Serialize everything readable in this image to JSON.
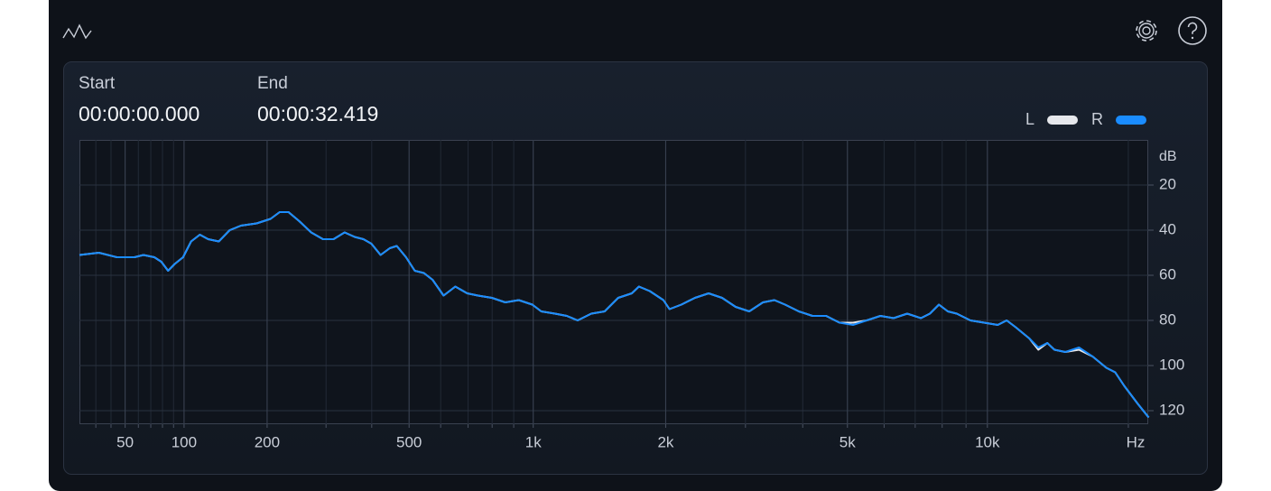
{
  "time": {
    "start_label": "Start",
    "start": "00:00:00.000",
    "end_label": "End",
    "end": "00:00:32.419"
  },
  "chart_data": {
    "type": "line",
    "xscale": "log",
    "grid": true,
    "y_unit": "dB",
    "x_unit": "Hz",
    "xlim": [
      20,
      22050
    ],
    "ylim": [
      126,
      0
    ],
    "xticks": [
      50,
      100,
      200,
      500,
      {
        "value": 1000,
        "label": "1k"
      },
      {
        "value": 2000,
        "label": "2k"
      },
      {
        "value": 5000,
        "label": "5k"
      },
      {
        "value": 10000,
        "label": "10k"
      }
    ],
    "yticks": [
      20,
      40,
      60,
      80,
      100,
      120
    ],
    "x": [
      20,
      32,
      44,
      57,
      64,
      73,
      79,
      85,
      91,
      99,
      107,
      116,
      125,
      137,
      150,
      164,
      185,
      205,
      219,
      233,
      251,
      272,
      294,
      315,
      338,
      360,
      380,
      399,
      422,
      446,
      465,
      491,
      517,
      545,
      573,
      610,
      652,
      697,
      740,
      799,
      860,
      925,
      995,
      1044,
      1123,
      1196,
      1266,
      1360,
      1459,
      1565,
      1680,
      1743,
      1843,
      1977,
      2040,
      2167,
      2323,
      2490,
      2665,
      2855,
      3058,
      3276,
      3471,
      3662,
      3922,
      4199,
      4496,
      4806,
      5141,
      5502,
      5890,
      6289,
      6730,
      7201,
      7527,
      7871,
      8225,
      8598,
      9198,
      9840,
      10526,
      10998,
      11495,
      12297,
      12854,
      13430,
      13914,
      14673,
      15696,
      16785,
      17951,
      18754,
      19601,
      20954,
      22098
    ],
    "series": [
      {
        "name": "L",
        "color": "#e6e8ec",
        "values": [
          51,
          50,
          52,
          52,
          51,
          52,
          54,
          58,
          55,
          52,
          45,
          42,
          44,
          45,
          40,
          38,
          37,
          35,
          32,
          32,
          36,
          41,
          44,
          44,
          41,
          43,
          44,
          46,
          51,
          48,
          47,
          52,
          58,
          59,
          62,
          69,
          65,
          68,
          69,
          70,
          72,
          71,
          73,
          76,
          77,
          78,
          80,
          77,
          76,
          70,
          68,
          65,
          67,
          71,
          75,
          73,
          70,
          68,
          70,
          74,
          76,
          72,
          71,
          73,
          76,
          78,
          78,
          81,
          81,
          80,
          78,
          79,
          77,
          79,
          77,
          73,
          76,
          77,
          80,
          81,
          82,
          80,
          83,
          88,
          93,
          90,
          93,
          94,
          93,
          96,
          101,
          103,
          109,
          117,
          123
        ]
      },
      {
        "name": "R",
        "color": "#1a8cff",
        "values": [
          51,
          50,
          52,
          52,
          51,
          52,
          54,
          58,
          55,
          52,
          45,
          42,
          44,
          45,
          40,
          38,
          37,
          35,
          32,
          32,
          36,
          41,
          44,
          44,
          41,
          43,
          44,
          46,
          51,
          48,
          47,
          52,
          58,
          59,
          62,
          69,
          65,
          68,
          69,
          70,
          72,
          71,
          73,
          76,
          77,
          78,
          80,
          77,
          76,
          70,
          68,
          65,
          67,
          71,
          75,
          73,
          70,
          68,
          70,
          74,
          76,
          72,
          71,
          73,
          76,
          78,
          78,
          81,
          82,
          80,
          78,
          79,
          77,
          79,
          77,
          73,
          76,
          77,
          80,
          81,
          82,
          80,
          83,
          88,
          92,
          90,
          93,
          94,
          92,
          96,
          101,
          103,
          109,
          117,
          123
        ]
      }
    ]
  }
}
